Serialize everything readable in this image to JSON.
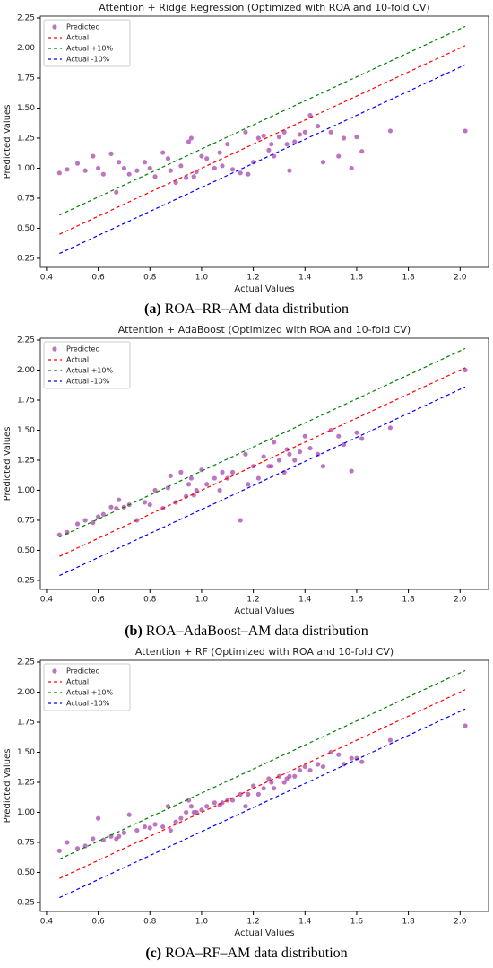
{
  "chart_data": [
    {
      "type": "scatter",
      "title": "Attention + Ridge Regression (Optimized with ROA and 10-fold CV)",
      "caption_label": "(a)",
      "caption": "ROA–RR–AM data distribution",
      "x_label": "Actual Values",
      "y_label": "Predicted Values",
      "xlim": [
        0.376,
        2.11
      ],
      "ylim": [
        0.175,
        2.265
      ],
      "xticks": [
        0.4,
        0.6,
        0.8,
        {
          "value": 1.0,
          "label": "1.0"
        },
        1.2,
        1.4,
        1.6,
        1.8,
        {
          "value": 2.0,
          "label": "2.0"
        }
      ],
      "yticks": [
        0.25,
        {
          "value": 0.5,
          "label": "0.50"
        },
        0.75,
        {
          "value": 1.0,
          "label": "1.00"
        },
        1.25,
        {
          "value": 1.5,
          "label": "1.50"
        },
        1.75,
        {
          "value": 2.0,
          "label": "2.00"
        },
        2.25
      ],
      "legend": "upper left",
      "series": [
        {
          "name": "Predicted",
          "color": "#a23aa6",
          "marker": "circle",
          "x": [
            0.45,
            0.48,
            0.52,
            0.55,
            0.58,
            0.6,
            0.62,
            0.65,
            0.67,
            0.7,
            0.72,
            0.75,
            0.78,
            0.8,
            0.82,
            0.85,
            0.87,
            0.9,
            0.92,
            0.94,
            0.96,
            0.98,
            1.0,
            1.02,
            1.05,
            1.07,
            1.1,
            1.12,
            1.15,
            1.17,
            1.2,
            1.22,
            1.24,
            1.26,
            1.28,
            1.3,
            1.32,
            1.34,
            1.36,
            1.38,
            1.4,
            1.42,
            1.45,
            1.47,
            1.5,
            1.53,
            1.55,
            1.58,
            1.6,
            1.62,
            1.73,
            2.02,
            0.95,
            1.18,
            1.27,
            0.88,
            1.08,
            1.33,
            0.68,
            0.97
          ],
          "values": [
            0.96,
            0.99,
            1.04,
            0.98,
            1.1,
            1.0,
            0.95,
            1.12,
            0.8,
            1.0,
            0.95,
            0.98,
            1.05,
            1.0,
            0.93,
            1.13,
            1.08,
            0.88,
            1.02,
            0.92,
            1.25,
            0.97,
            1.1,
            1.08,
            1.0,
            1.13,
            1.2,
            0.99,
            0.96,
            1.3,
            1.05,
            1.25,
            1.27,
            1.15,
            1.1,
            1.26,
            1.3,
            0.98,
            1.22,
            1.28,
            1.3,
            1.44,
            1.35,
            1.05,
            1.3,
            1.1,
            1.25,
            1.0,
            1.26,
            1.14,
            1.31,
            1.31,
            1.22,
            0.95,
            1.2,
            0.98,
            1.02,
            1.2,
            1.05,
            0.93
          ]
        },
        {
          "name": "Actual",
          "color": "#ff0000",
          "linestyle": "dashed",
          "x": [
            0.45,
            2.02
          ],
          "values": [
            0.45,
            2.02
          ]
        },
        {
          "name": "Actual +10%",
          "color": "#008000",
          "linestyle": "dashed",
          "x": [
            0.45,
            2.02
          ],
          "values": [
            0.61,
            2.18
          ]
        },
        {
          "name": "Actual -10%",
          "color": "#0000ff",
          "linestyle": "dashed",
          "x": [
            0.45,
            2.02
          ],
          "values": [
            0.29,
            1.86
          ]
        }
      ]
    },
    {
      "type": "scatter",
      "title": "Attention + AdaBoost (Optimized with ROA and 10-fold CV)",
      "caption_label": "(b)",
      "caption": "ROA–AdaBoost–AM data distribution",
      "x_label": "Actual Values",
      "y_label": "Predicted Values",
      "xlim": [
        0.376,
        2.11
      ],
      "ylim": [
        0.175,
        2.265
      ],
      "xticks": [
        0.4,
        0.6,
        0.8,
        {
          "value": 1.0,
          "label": "1.0"
        },
        1.2,
        1.4,
        1.6,
        1.8,
        {
          "value": 2.0,
          "label": "2.0"
        }
      ],
      "yticks": [
        0.25,
        {
          "value": 0.5,
          "label": "0.50"
        },
        0.75,
        {
          "value": 1.0,
          "label": "1.00"
        },
        1.25,
        {
          "value": 1.5,
          "label": "1.50"
        },
        1.75,
        {
          "value": 2.0,
          "label": "2.00"
        },
        2.25
      ],
      "legend": "upper left",
      "series": [
        {
          "name": "Predicted",
          "color": "#a23aa6",
          "marker": "circle",
          "x": [
            0.45,
            0.48,
            0.52,
            0.55,
            0.58,
            0.6,
            0.62,
            0.65,
            0.67,
            0.7,
            0.72,
            0.75,
            0.78,
            0.8,
            0.82,
            0.85,
            0.87,
            0.9,
            0.92,
            0.94,
            0.96,
            0.98,
            1.0,
            1.02,
            1.05,
            1.07,
            1.1,
            1.12,
            1.15,
            1.17,
            1.2,
            1.22,
            1.24,
            1.26,
            1.28,
            1.3,
            1.32,
            1.34,
            1.36,
            1.38,
            1.4,
            1.42,
            1.45,
            1.47,
            1.5,
            1.53,
            1.55,
            1.58,
            1.6,
            1.62,
            1.73,
            2.02,
            0.95,
            1.18,
            1.27,
            0.88,
            1.08,
            1.33,
            0.68,
            0.97
          ],
          "values": [
            0.63,
            0.65,
            0.72,
            0.75,
            0.73,
            0.78,
            0.8,
            0.86,
            0.85,
            0.86,
            0.88,
            0.75,
            0.9,
            0.88,
            1.0,
            0.85,
            1.02,
            0.9,
            1.15,
            0.95,
            1.1,
            1.0,
            1.17,
            1.05,
            1.1,
            1.0,
            1.1,
            1.15,
            0.75,
            1.3,
            1.2,
            1.1,
            1.28,
            1.2,
            1.4,
            1.25,
            1.15,
            1.3,
            1.25,
            1.32,
            1.45,
            1.35,
            1.3,
            1.2,
            1.5,
            1.45,
            1.38,
            1.16,
            1.48,
            1.43,
            1.52,
            2.0,
            1.05,
            1.05,
            1.2,
            1.12,
            1.15,
            1.34,
            0.92,
            0.96
          ]
        },
        {
          "name": "Actual",
          "color": "#ff0000",
          "linestyle": "dashed",
          "x": [
            0.45,
            2.02
          ],
          "values": [
            0.45,
            2.02
          ]
        },
        {
          "name": "Actual +10%",
          "color": "#008000",
          "linestyle": "dashed",
          "x": [
            0.45,
            2.02
          ],
          "values": [
            0.61,
            2.18
          ]
        },
        {
          "name": "Actual -10%",
          "color": "#0000ff",
          "linestyle": "dashed",
          "x": [
            0.45,
            2.02
          ],
          "values": [
            0.29,
            1.86
          ]
        }
      ]
    },
    {
      "type": "scatter",
      "title": "Attention + RF (Optimized with ROA and 10-fold CV)",
      "caption_label": "(c)",
      "caption": "ROA–RF–AM data distribution",
      "x_label": "Actual Values",
      "y_label": "Predicted Values",
      "xlim": [
        0.376,
        2.11
      ],
      "ylim": [
        0.175,
        2.265
      ],
      "xticks": [
        0.4,
        0.6,
        0.8,
        {
          "value": 1.0,
          "label": "1.0"
        },
        1.2,
        1.4,
        1.6,
        1.8,
        {
          "value": 2.0,
          "label": "2.0"
        }
      ],
      "yticks": [
        0.25,
        {
          "value": 0.5,
          "label": "0.50"
        },
        0.75,
        {
          "value": 1.0,
          "label": "1.00"
        },
        1.25,
        {
          "value": 1.5,
          "label": "1.50"
        },
        1.75,
        {
          "value": 2.0,
          "label": "2.00"
        },
        2.25
      ],
      "legend": "upper left",
      "series": [
        {
          "name": "Predicted",
          "color": "#a23aa6",
          "marker": "circle",
          "x": [
            0.45,
            0.48,
            0.52,
            0.55,
            0.58,
            0.6,
            0.62,
            0.65,
            0.67,
            0.7,
            0.72,
            0.75,
            0.78,
            0.8,
            0.82,
            0.85,
            0.87,
            0.9,
            0.92,
            0.94,
            0.96,
            0.98,
            1.0,
            1.02,
            1.05,
            1.07,
            1.1,
            1.12,
            1.15,
            1.17,
            1.2,
            1.22,
            1.24,
            1.26,
            1.28,
            1.3,
            1.32,
            1.34,
            1.36,
            1.38,
            1.4,
            1.42,
            1.45,
            1.47,
            1.5,
            1.53,
            1.55,
            1.58,
            1.6,
            1.62,
            1.73,
            2.02,
            0.95,
            1.18,
            1.27,
            0.88,
            1.08,
            1.33,
            0.68,
            0.97
          ],
          "values": [
            0.68,
            0.75,
            0.7,
            0.72,
            0.78,
            0.95,
            0.77,
            0.8,
            0.78,
            0.83,
            0.98,
            0.85,
            0.88,
            0.87,
            0.9,
            0.88,
            1.05,
            0.92,
            0.95,
            1.0,
            1.05,
            1.0,
            1.02,
            1.05,
            1.08,
            1.06,
            1.1,
            1.1,
            1.15,
            1.05,
            1.22,
            1.15,
            1.2,
            1.28,
            1.2,
            1.3,
            1.25,
            1.3,
            1.3,
            1.35,
            1.38,
            1.35,
            1.4,
            1.38,
            1.5,
            1.48,
            1.4,
            1.45,
            1.45,
            1.42,
            1.6,
            1.72,
            1.1,
            1.15,
            1.25,
            0.85,
            1.08,
            1.28,
            0.8,
            1.0
          ]
        },
        {
          "name": "Actual",
          "color": "#ff0000",
          "linestyle": "dashed",
          "x": [
            0.45,
            2.02
          ],
          "values": [
            0.45,
            2.02
          ]
        },
        {
          "name": "Actual +10%",
          "color": "#008000",
          "linestyle": "dashed",
          "x": [
            0.45,
            2.02
          ],
          "values": [
            0.61,
            2.18
          ]
        },
        {
          "name": "Actual -10%",
          "color": "#0000ff",
          "linestyle": "dashed",
          "x": [
            0.45,
            2.02
          ],
          "values": [
            0.29,
            1.86
          ]
        }
      ]
    }
  ]
}
